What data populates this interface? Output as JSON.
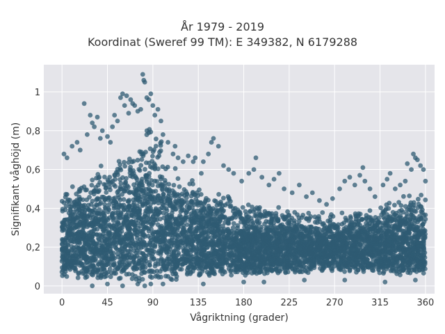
{
  "chart_data": {
    "type": "scatter",
    "title": [
      "År 1979 - 2019",
      "Koordinat (Sweref 99 TM): E 349382, N 6179288"
    ],
    "xlabel": "Vågriktning (grader)",
    "ylabel": "Signifikant våghöjd (m)",
    "xlim": [
      -18,
      369
    ],
    "ylim": [
      -0.04,
      1.14
    ],
    "xticks": [
      0,
      45,
      90,
      135,
      180,
      225,
      270,
      315,
      360
    ],
    "xtick_labels": [
      "0",
      "45",
      "90",
      "135",
      "180",
      "225",
      "270",
      "315",
      "360"
    ],
    "yticks": [
      0,
      0.2,
      0.4,
      0.6,
      0.8,
      1
    ],
    "ytick_labels": [
      "0",
      "0,2",
      "0,4",
      "0,6",
      "0,8",
      "1"
    ],
    "grid": true,
    "marker_color": "#2f5b73",
    "plot_bg": "#e5e5ea",
    "density_band": [
      {
        "x": 0,
        "low": 0.04,
        "high": 0.48
      },
      {
        "x": 20,
        "low": 0.03,
        "high": 0.6
      },
      {
        "x": 45,
        "low": 0.02,
        "high": 0.65
      },
      {
        "x": 70,
        "low": 0.02,
        "high": 0.72
      },
      {
        "x": 85,
        "low": 0.02,
        "high": 0.85
      },
      {
        "x": 95,
        "low": 0.02,
        "high": 0.82
      },
      {
        "x": 110,
        "low": 0.03,
        "high": 0.62
      },
      {
        "x": 135,
        "low": 0.04,
        "high": 0.55
      },
      {
        "x": 180,
        "low": 0.05,
        "high": 0.44
      },
      {
        "x": 225,
        "low": 0.06,
        "high": 0.4
      },
      {
        "x": 270,
        "low": 0.07,
        "high": 0.38
      },
      {
        "x": 315,
        "low": 0.06,
        "high": 0.42
      },
      {
        "x": 345,
        "low": 0.05,
        "high": 0.5
      },
      {
        "x": 360,
        "low": 0.05,
        "high": 0.48
      }
    ],
    "outliers": [
      [
        2,
        0.68
      ],
      [
        5,
        0.66
      ],
      [
        10,
        0.72
      ],
      [
        15,
        0.74
      ],
      [
        18,
        0.7
      ],
      [
        22,
        0.94
      ],
      [
        25,
        0.78
      ],
      [
        28,
        0.88
      ],
      [
        30,
        0.84
      ],
      [
        32,
        0.82
      ],
      [
        35,
        0.87
      ],
      [
        38,
        0.76
      ],
      [
        40,
        0.8
      ],
      [
        45,
        0.77
      ],
      [
        48,
        0.74
      ],
      [
        50,
        0.82
      ],
      [
        52,
        0.88
      ],
      [
        55,
        0.85
      ],
      [
        58,
        0.97
      ],
      [
        60,
        0.99
      ],
      [
        62,
        0.93
      ],
      [
        64,
        0.98
      ],
      [
        66,
        0.89
      ],
      [
        68,
        0.96
      ],
      [
        70,
        0.94
      ],
      [
        72,
        0.93
      ],
      [
        75,
        0.9
      ],
      [
        78,
        0.91
      ],
      [
        80,
        1.09
      ],
      [
        81,
        1.06
      ],
      [
        82,
        1.05
      ],
      [
        84,
        0.97
      ],
      [
        86,
        0.96
      ],
      [
        88,
        0.99
      ],
      [
        90,
        0.93
      ],
      [
        92,
        0.88
      ],
      [
        95,
        0.91
      ],
      [
        98,
        0.85
      ],
      [
        100,
        0.78
      ],
      [
        105,
        0.74
      ],
      [
        110,
        0.68
      ],
      [
        112,
        0.72
      ],
      [
        115,
        0.66
      ],
      [
        120,
        0.64
      ],
      [
        125,
        0.67
      ],
      [
        130,
        0.64
      ],
      [
        132,
        0.66
      ],
      [
        138,
        0.58
      ],
      [
        140,
        0.64
      ],
      [
        145,
        0.68
      ],
      [
        148,
        0.74
      ],
      [
        150,
        0.76
      ],
      [
        155,
        0.72
      ],
      [
        160,
        0.62
      ],
      [
        165,
        0.6
      ],
      [
        170,
        0.58
      ],
      [
        178,
        0.54
      ],
      [
        185,
        0.58
      ],
      [
        190,
        0.6
      ],
      [
        192,
        0.66
      ],
      [
        198,
        0.56
      ],
      [
        205,
        0.52
      ],
      [
        210,
        0.55
      ],
      [
        215,
        0.58
      ],
      [
        220,
        0.5
      ],
      [
        228,
        0.48
      ],
      [
        235,
        0.52
      ],
      [
        242,
        0.46
      ],
      [
        248,
        0.48
      ],
      [
        255,
        0.44
      ],
      [
        262,
        0.42
      ],
      [
        268,
        0.45
      ],
      [
        275,
        0.5
      ],
      [
        280,
        0.54
      ],
      [
        285,
        0.56
      ],
      [
        290,
        0.52
      ],
      [
        295,
        0.57
      ],
      [
        298,
        0.61
      ],
      [
        300,
        0.54
      ],
      [
        305,
        0.5
      ],
      [
        310,
        0.46
      ],
      [
        318,
        0.52
      ],
      [
        322,
        0.55
      ],
      [
        325,
        0.58
      ],
      [
        330,
        0.5
      ],
      [
        335,
        0.52
      ],
      [
        340,
        0.54
      ],
      [
        342,
        0.63
      ],
      [
        346,
        0.6
      ],
      [
        348,
        0.68
      ],
      [
        350,
        0.66
      ],
      [
        352,
        0.65
      ],
      [
        355,
        0.62
      ],
      [
        358,
        0.6
      ],
      [
        360,
        0.54
      ],
      [
        30,
        0.0
      ],
      [
        45,
        0.01
      ],
      [
        60,
        0.0
      ],
      [
        75,
        0.01
      ],
      [
        82,
        0.0
      ],
      [
        88,
        0.01
      ],
      [
        100,
        0.01
      ],
      [
        140,
        0.01
      ],
      [
        180,
        0.02
      ],
      [
        200,
        0.02
      ],
      [
        240,
        0.03
      ],
      [
        280,
        0.03
      ],
      [
        320,
        0.02
      ],
      [
        350,
        0.03
      ]
    ]
  }
}
